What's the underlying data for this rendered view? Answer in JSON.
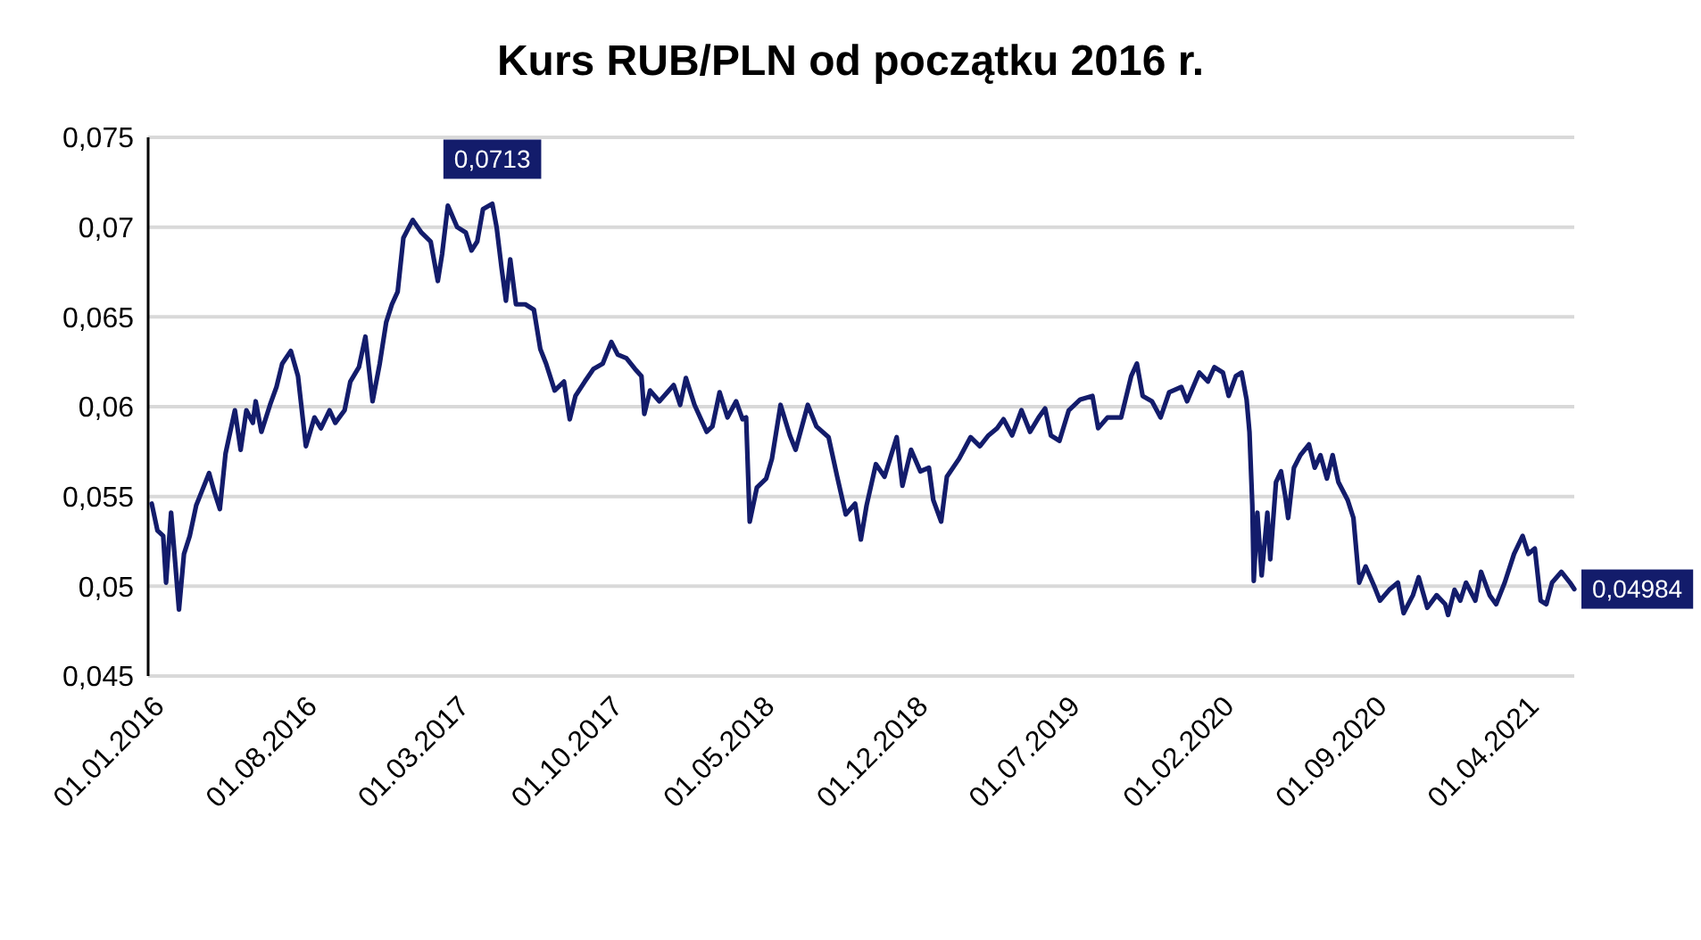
{
  "chart_data": {
    "type": "line",
    "title": "Kurs RUB/PLN od początku 2016 r.",
    "x": [
      "2016-01-06",
      "2016-01-14",
      "2016-01-22",
      "2016-01-26",
      "2016-02-02",
      "2016-02-08",
      "2016-02-13",
      "2016-02-20",
      "2016-02-28",
      "2016-03-08",
      "2016-03-16",
      "2016-03-26",
      "2016-04-02",
      "2016-04-10",
      "2016-04-18",
      "2016-05-01",
      "2016-05-09",
      "2016-05-17",
      "2016-05-26",
      "2016-05-30",
      "2016-06-07",
      "2016-06-19",
      "2016-06-28",
      "2016-07-06",
      "2016-07-18",
      "2016-07-28",
      "2016-08-08",
      "2016-08-20",
      "2016-08-29",
      "2016-09-10",
      "2016-09-18",
      "2016-10-01",
      "2016-10-09",
      "2016-10-21",
      "2016-10-30",
      "2016-11-09",
      "2016-11-19",
      "2016-11-28",
      "2016-12-06",
      "2016-12-14",
      "2016-12-22",
      "2017-01-04",
      "2017-01-16",
      "2017-01-29",
      "2017-02-08",
      "2017-02-14",
      "2017-02-22",
      "2017-03-07",
      "2017-03-19",
      "2017-03-27",
      "2017-04-04",
      "2017-04-12",
      "2017-04-25",
      "2017-05-01",
      "2017-05-08",
      "2017-05-14",
      "2017-05-20",
      "2017-05-28",
      "2017-06-10",
      "2017-06-22",
      "2017-07-01",
      "2017-07-09",
      "2017-07-21",
      "2017-08-03",
      "2017-08-11",
      "2017-08-19",
      "2017-09-01",
      "2017-09-13",
      "2017-09-26",
      "2017-10-08",
      "2017-10-17",
      "2017-10-29",
      "2017-11-10",
      "2017-11-19",
      "2017-11-23",
      "2017-12-01",
      "2017-12-14",
      "2018-01-03",
      "2018-01-12",
      "2018-01-20",
      "2018-02-01",
      "2018-02-18",
      "2018-02-26",
      "2018-03-08",
      "2018-03-19",
      "2018-03-31",
      "2018-04-09",
      "2018-04-14",
      "2018-04-19",
      "2018-04-29",
      "2018-05-12",
      "2018-05-20",
      "2018-06-01",
      "2018-06-14",
      "2018-06-22",
      "2018-07-09",
      "2018-07-21",
      "2018-08-07",
      "2018-08-19",
      "2018-08-31",
      "2018-09-13",
      "2018-09-21",
      "2018-09-29",
      "2018-10-12",
      "2018-10-24",
      "2018-11-10",
      "2018-11-18",
      "2018-11-30",
      "2018-12-13",
      "2018-12-25",
      "2018-12-31",
      "2019-01-11",
      "2019-01-19",
      "2019-02-05",
      "2019-02-21",
      "2019-03-06",
      "2019-03-18",
      "2019-03-30",
      "2019-04-08",
      "2019-04-20",
      "2019-05-03",
      "2019-05-15",
      "2019-05-27",
      "2019-06-05",
      "2019-06-13",
      "2019-06-25",
      "2019-07-08",
      "2019-07-24",
      "2019-08-10",
      "2019-08-18",
      "2019-08-31",
      "2019-09-19",
      "2019-10-03",
      "2019-10-11",
      "2019-10-19",
      "2019-11-01",
      "2019-11-13",
      "2019-11-25",
      "2019-12-12",
      "2019-12-20",
      "2020-01-06",
      "2020-01-18",
      "2020-01-27",
      "2020-02-08",
      "2020-02-16",
      "2020-02-26",
      "2020-03-05",
      "2020-03-12",
      "2020-03-16",
      "2020-03-20",
      "2020-03-22",
      "2020-03-27",
      "2020-04-02",
      "2020-04-10",
      "2020-04-14",
      "2020-04-22",
      "2020-04-29",
      "2020-05-05",
      "2020-05-09",
      "2020-05-17",
      "2020-05-26",
      "2020-06-07",
      "2020-06-15",
      "2020-06-23",
      "2020-07-02",
      "2020-07-10",
      "2020-07-18",
      "2020-07-31",
      "2020-08-08",
      "2020-08-16",
      "2020-08-25",
      "2020-09-06",
      "2020-09-14",
      "2020-09-27",
      "2020-10-09",
      "2020-10-17",
      "2020-10-30",
      "2020-11-07",
      "2020-11-19",
      "2020-12-02",
      "2020-12-14",
      "2020-12-18",
      "2020-12-27",
      "2021-01-04",
      "2021-01-12",
      "2021-01-25",
      "2021-02-02",
      "2021-02-14",
      "2021-02-23",
      "2021-03-07",
      "2021-03-20",
      "2021-04-01",
      "2021-04-09",
      "2021-04-18",
      "2021-04-26",
      "2021-05-04",
      "2021-05-12",
      "2021-05-25",
      "2021-06-06",
      "2021-06-12"
    ],
    "series": [
      {
        "color": "#131c6b",
        "values": [
          0.0546,
          0.0531,
          0.0528,
          0.0502,
          0.0541,
          0.0512,
          0.0487,
          0.0518,
          0.0528,
          0.0545,
          0.0553,
          0.0563,
          0.0553,
          0.0543,
          0.0574,
          0.0598,
          0.0576,
          0.0598,
          0.0591,
          0.0603,
          0.0586,
          0.0601,
          0.0611,
          0.0624,
          0.0631,
          0.0617,
          0.0578,
          0.0594,
          0.0588,
          0.0598,
          0.0591,
          0.0598,
          0.0614,
          0.0622,
          0.0639,
          0.0603,
          0.0624,
          0.0647,
          0.0657,
          0.0664,
          0.0694,
          0.0704,
          0.0697,
          0.0692,
          0.067,
          0.0685,
          0.0712,
          0.07,
          0.0697,
          0.0687,
          0.0692,
          0.071,
          0.0713,
          0.07,
          0.0677,
          0.0659,
          0.0682,
          0.0657,
          0.0657,
          0.0654,
          0.0632,
          0.0624,
          0.0609,
          0.0614,
          0.0593,
          0.0606,
          0.0614,
          0.0621,
          0.0624,
          0.0636,
          0.0629,
          0.0627,
          0.0621,
          0.0617,
          0.0596,
          0.0609,
          0.0603,
          0.0612,
          0.0601,
          0.0616,
          0.0601,
          0.0586,
          0.0589,
          0.0608,
          0.0594,
          0.0603,
          0.0593,
          0.0594,
          0.0536,
          0.0555,
          0.056,
          0.0571,
          0.0601,
          0.0584,
          0.0576,
          0.0601,
          0.0589,
          0.0583,
          0.0561,
          0.054,
          0.0546,
          0.0526,
          0.0545,
          0.0568,
          0.0561,
          0.0583,
          0.0556,
          0.0576,
          0.0564,
          0.0566,
          0.0548,
          0.0536,
          0.0561,
          0.0571,
          0.0583,
          0.0578,
          0.0584,
          0.0588,
          0.0593,
          0.0584,
          0.0598,
          0.0586,
          0.0594,
          0.0599,
          0.0584,
          0.0581,
          0.0598,
          0.0604,
          0.0606,
          0.0588,
          0.0594,
          0.0594,
          0.0617,
          0.0624,
          0.0606,
          0.0603,
          0.0594,
          0.0608,
          0.0611,
          0.0603,
          0.0619,
          0.0614,
          0.0622,
          0.0619,
          0.0606,
          0.0617,
          0.0619,
          0.0604,
          0.0586,
          0.0545,
          0.0503,
          0.0541,
          0.0506,
          0.0541,
          0.0515,
          0.0558,
          0.0564,
          0.055,
          0.0538,
          0.0566,
          0.0573,
          0.0579,
          0.0566,
          0.0573,
          0.056,
          0.0573,
          0.0558,
          0.0548,
          0.0538,
          0.0502,
          0.0511,
          0.05,
          0.0492,
          0.0498,
          0.0502,
          0.0485,
          0.0495,
          0.0505,
          0.0488,
          0.0495,
          0.049,
          0.0484,
          0.0498,
          0.0492,
          0.0502,
          0.0492,
          0.0508,
          0.0495,
          0.049,
          0.0502,
          0.0518,
          0.0528,
          0.0518,
          0.0521,
          0.0492,
          0.049,
          0.0502,
          0.0508,
          0.0502,
          0.04984
        ]
      }
    ],
    "xlim": [
      "2016-01-01",
      "2021-06-12"
    ],
    "xticks": [
      {
        "value": "2016-01-01",
        "label": "01.01.2016"
      },
      {
        "value": "2016-08-01",
        "label": "01.08.2016"
      },
      {
        "value": "2017-03-01",
        "label": "01.03.2017"
      },
      {
        "value": "2017-10-01",
        "label": "01.10.2017"
      },
      {
        "value": "2018-05-01",
        "label": "01.05.2018"
      },
      {
        "value": "2018-12-01",
        "label": "01.12.2018"
      },
      {
        "value": "2019-07-01",
        "label": "01.07.2019"
      },
      {
        "value": "2020-02-01",
        "label": "01.02.2020"
      },
      {
        "value": "2020-09-01",
        "label": "01.09.2020"
      },
      {
        "value": "2021-04-01",
        "label": "01.04.2021"
      }
    ],
    "ylim": [
      0.045,
      0.075
    ],
    "yticks": [
      {
        "value": 0.045,
        "label": "0,045"
      },
      {
        "value": 0.05,
        "label": "0,05"
      },
      {
        "value": 0.055,
        "label": "0,055"
      },
      {
        "value": 0.06,
        "label": "0,06"
      },
      {
        "value": 0.065,
        "label": "0,065"
      },
      {
        "value": 0.07,
        "label": "0,07"
      },
      {
        "value": 0.075,
        "label": "0,075"
      }
    ],
    "grid": "y",
    "annotations": [
      {
        "text": "0,0713",
        "x": "2017-04-25",
        "y": 0.0713
      },
      {
        "text": "0,04984",
        "x": "2021-06-12",
        "y": 0.04984
      }
    ]
  }
}
